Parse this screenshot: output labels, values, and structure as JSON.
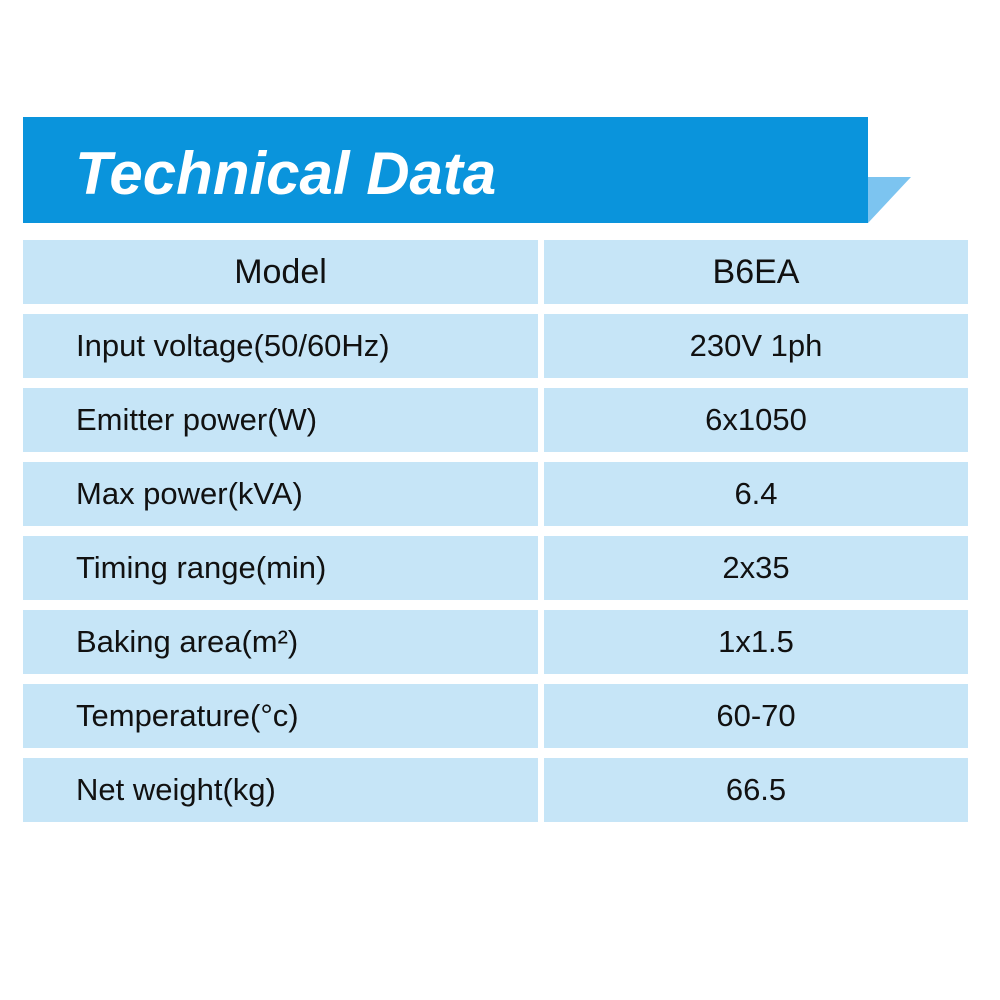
{
  "header": {
    "title": "Technical Data"
  },
  "table": {
    "columns": [
      "Model",
      "B6EA"
    ],
    "rows": [
      [
        "Input voltage(50/60Hz)",
        "230V 1ph"
      ],
      [
        "Emitter power(W)",
        "6x1050"
      ],
      [
        "Max power(kVA)",
        "6.4"
      ],
      [
        "Timing range(min)",
        "2x35"
      ],
      [
        "Baking area(m²)",
        "1x1.5"
      ],
      [
        "Temperature(°c)",
        "60-70"
      ],
      [
        "Net weight(kg)",
        "66.5"
      ]
    ]
  }
}
